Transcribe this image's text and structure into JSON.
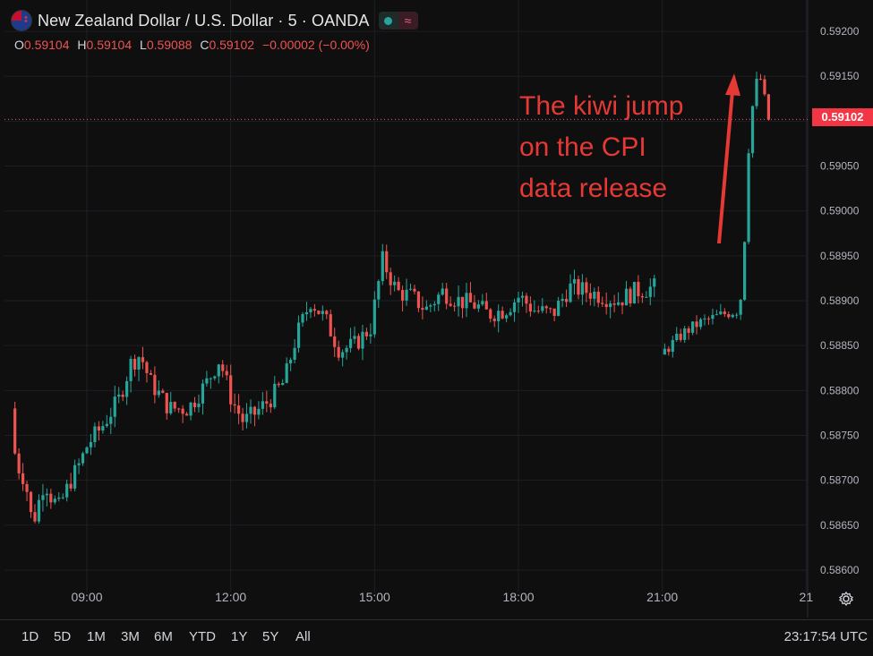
{
  "header": {
    "symbol": "New Zealand Dollar / U.S. Dollar · 5 · OANDA",
    "flag_icon": "nz-flag-icon",
    "status_icon": "market-open-dot-icon",
    "wave_icon": "data-delay-wave-icon"
  },
  "ohlc": {
    "o_label": "O",
    "o_value": "0.59104",
    "h_label": "H",
    "h_value": "0.59104",
    "l_label": "L",
    "l_value": "0.59088",
    "c_label": "C",
    "c_value": "0.59102",
    "change": "−0.00002 (−0.00%)"
  },
  "current_price": "0.59102",
  "annotation": {
    "line1": "The kiwi jump",
    "line2": "on the CPI",
    "line3": "data release"
  },
  "timeframes": [
    "1D",
    "5D",
    "1M",
    "3M",
    "6M",
    "YTD",
    "1Y",
    "5Y",
    "All"
  ],
  "clock": "23:17:54 UTC",
  "colors": {
    "up": "#26a69a",
    "down": "#ef5350",
    "background": "#0f0f0f",
    "grid": "#1e222d",
    "annotation": "#e53935"
  },
  "chart_data": {
    "type": "candlestick",
    "y_ticks": [
      "0.59200",
      "0.59150",
      "0.59100",
      "0.59050",
      "0.59000",
      "0.58950",
      "0.58900",
      "0.58850",
      "0.58800",
      "0.58750",
      "0.58700",
      "0.58650",
      "0.58600"
    ],
    "ylim": [
      0.58585,
      0.59225
    ],
    "x_ticks": [
      "09:00",
      "12:00",
      "15:00",
      "18:00",
      "21:00",
      "21"
    ],
    "x_tick_hours": [
      9,
      12,
      15,
      18,
      21,
      24
    ],
    "interval_minutes": 5,
    "start_hour": 7.5,
    "path_points": [
      [
        7.5,
        0.5878
      ],
      [
        7.6,
        0.5872
      ],
      [
        7.8,
        0.587
      ],
      [
        7.95,
        0.5865
      ],
      [
        8.2,
        0.587
      ],
      [
        8.35,
        0.5868
      ],
      [
        8.5,
        0.5867
      ],
      [
        8.75,
        0.587
      ],
      [
        8.95,
        0.5872
      ],
      [
        9.1,
        0.5874
      ],
      [
        9.4,
        0.5876
      ],
      [
        9.75,
        0.5879
      ],
      [
        10.0,
        0.5883
      ],
      [
        10.2,
        0.5884
      ],
      [
        10.4,
        0.5881
      ],
      [
        10.8,
        0.5878
      ],
      [
        11.2,
        0.5878
      ],
      [
        11.6,
        0.5881
      ],
      [
        11.85,
        0.58835
      ],
      [
        12.1,
        0.5879
      ],
      [
        12.35,
        0.58765
      ],
      [
        12.6,
        0.58775
      ],
      [
        12.9,
        0.5879
      ],
      [
        13.2,
        0.5881
      ],
      [
        13.45,
        0.5886
      ],
      [
        13.75,
        0.589
      ],
      [
        14.05,
        0.5888
      ],
      [
        14.35,
        0.58845
      ],
      [
        14.65,
        0.5885
      ],
      [
        15.0,
        0.5887
      ],
      [
        15.25,
        0.58945
      ],
      [
        15.55,
        0.5891
      ],
      [
        15.85,
        0.58905
      ],
      [
        16.15,
        0.5889
      ],
      [
        16.5,
        0.5891
      ],
      [
        16.85,
        0.589
      ],
      [
        17.2,
        0.58895
      ],
      [
        17.45,
        0.58885
      ],
      [
        17.8,
        0.5889
      ],
      [
        18.1,
        0.58905
      ],
      [
        18.4,
        0.5889
      ],
      [
        18.8,
        0.58885
      ],
      [
        19.15,
        0.58915
      ],
      [
        19.55,
        0.5891
      ],
      [
        19.85,
        0.58905
      ],
      [
        20.15,
        0.589
      ],
      [
        20.5,
        0.5891
      ],
      [
        20.9,
        0.58915
      ]
    ],
    "path_points_after_gap": [
      [
        21.05,
        0.5884
      ],
      [
        21.25,
        0.5885
      ],
      [
        21.55,
        0.58865
      ],
      [
        21.85,
        0.58875
      ],
      [
        22.1,
        0.5888
      ],
      [
        22.35,
        0.58885
      ],
      [
        22.7,
        0.5889
      ],
      [
        22.8,
        0.5897
      ],
      [
        22.9,
        0.5909
      ],
      [
        23.0,
        0.5913
      ],
      [
        23.1,
        0.59155
      ],
      [
        23.2,
        0.5913
      ],
      [
        23.28,
        0.59102
      ]
    ],
    "last_close": 0.59102
  }
}
